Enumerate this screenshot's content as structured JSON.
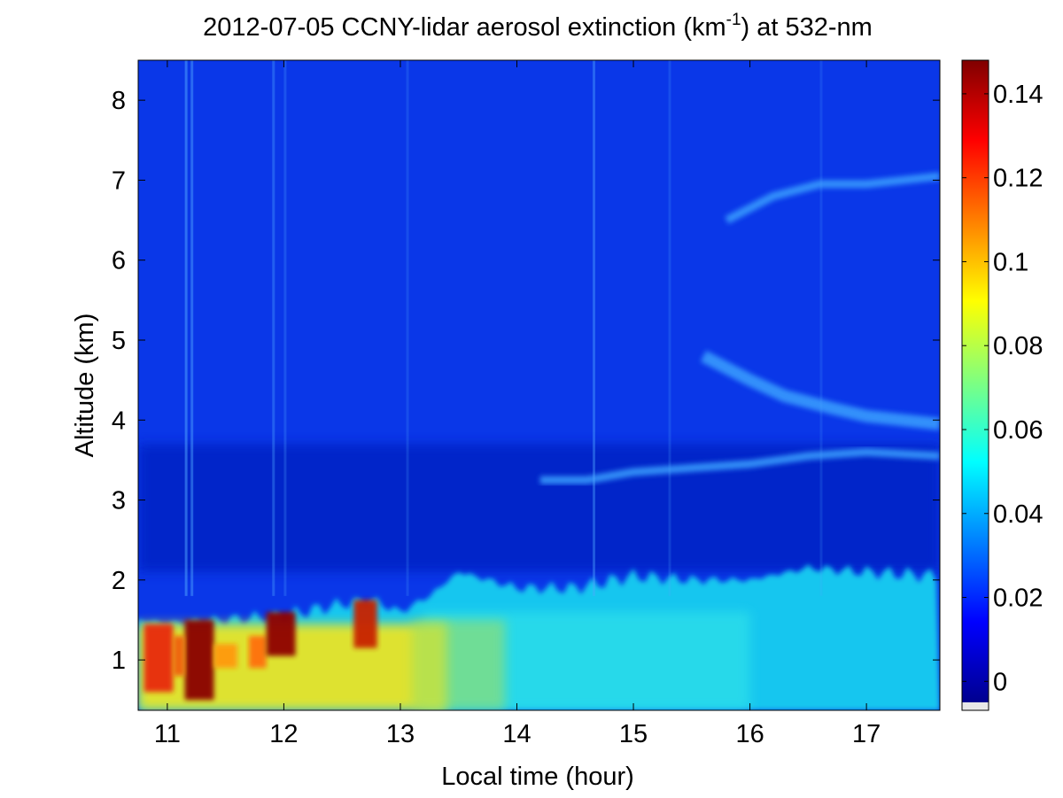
{
  "chart_data": {
    "type": "heatmap",
    "title_main": "2012-07-05 CCNY-lidar aerosol extinction (km",
    "title_sup": "-1",
    "title_tail": ") at 532-nm",
    "xlabel": "Local time (hour)",
    "ylabel": "Altitude (km)",
    "xlim": [
      10.75,
      17.63
    ],
    "ylim": [
      0.37,
      8.5
    ],
    "xticks": [
      11,
      12,
      13,
      14,
      15,
      16,
      17
    ],
    "xtick_labels": [
      "11",
      "12",
      "13",
      "14",
      "15",
      "16",
      "17"
    ],
    "yticks": [
      1,
      2,
      3,
      4,
      5,
      6,
      7,
      8
    ],
    "ytick_labels": [
      "1",
      "2",
      "3",
      "4",
      "5",
      "6",
      "7",
      "8"
    ],
    "colorbar": {
      "colormap": "jet",
      "clim": [
        -0.005,
        0.148
      ],
      "ticks": [
        0,
        0.02,
        0.04,
        0.06,
        0.08,
        0.1,
        0.12,
        0.14
      ],
      "tick_labels": [
        "0",
        "0.02",
        "0.04",
        "0.06",
        "0.08",
        "0.1",
        "0.12",
        "0.14"
      ]
    },
    "features": {
      "boundary_layer_top": {
        "x": [
          10.75,
          11.0,
          11.5,
          12.0,
          12.5,
          12.75,
          13.0,
          13.25,
          13.5,
          13.75,
          14.0,
          14.5,
          15.0,
          15.5,
          16.0,
          16.5,
          17.0,
          17.63
        ],
        "y": [
          1.5,
          1.45,
          1.5,
          1.55,
          1.7,
          1.75,
          1.6,
          1.8,
          2.1,
          2.0,
          1.9,
          1.9,
          2.05,
          2.0,
          2.0,
          2.15,
          2.1,
          2.05
        ]
      },
      "aerosol_layers": [
        {
          "x": [
            14.2,
            14.6,
            15.0,
            15.5,
            16.0,
            16.5,
            17.0,
            17.63
          ],
          "y": [
            3.25,
            3.25,
            3.35,
            3.4,
            3.45,
            3.55,
            3.6,
            3.55
          ]
        },
        {
          "x": [
            15.6,
            16.0,
            16.3,
            16.7,
            17.0,
            17.63
          ],
          "y": [
            4.8,
            4.5,
            4.3,
            4.15,
            4.05,
            3.95
          ]
        },
        {
          "x": [
            15.8,
            16.2,
            16.6,
            17.0,
            17.63
          ],
          "y": [
            6.5,
            6.8,
            6.95,
            6.95,
            7.05
          ]
        }
      ]
    }
  }
}
